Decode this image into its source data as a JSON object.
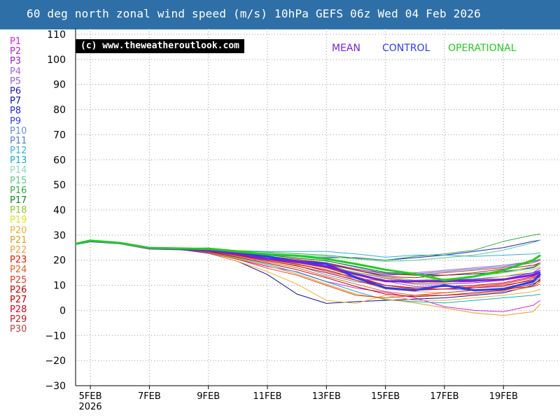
{
  "page": {
    "title": "60 deg north zonal wind speed (m/s) 10hPa GEFS 06z Wed 04 Feb 2026",
    "copyright": "(c) www.theweatheroutlook.com"
  },
  "colors": {
    "title_bar": "#2f6fa8",
    "mean": "#7a1fe0",
    "control": "#2a3df0",
    "operational": "#22cc22"
  },
  "members": [
    {
      "label": "P1",
      "color": "#e020e0"
    },
    {
      "label": "P2",
      "color": "#c020d0"
    },
    {
      "label": "P3",
      "color": "#a020c0"
    },
    {
      "label": "P4",
      "color": "#a860e0"
    },
    {
      "label": "P5",
      "color": "#9060c0"
    },
    {
      "label": "P6",
      "color": "#2020c0"
    },
    {
      "label": "P7",
      "color": "#1010a0"
    },
    {
      "label": "P8",
      "color": "#2020e0"
    },
    {
      "label": "P9",
      "color": "#3040e0"
    },
    {
      "label": "P10",
      "color": "#6090e0"
    },
    {
      "label": "P11",
      "color": "#5080d0"
    },
    {
      "label": "P12",
      "color": "#30b0e8"
    },
    {
      "label": "P13",
      "color": "#10b0d0"
    },
    {
      "label": "P14",
      "color": "#90d8c0"
    },
    {
      "label": "P15",
      "color": "#60c890"
    },
    {
      "label": "P16",
      "color": "#30b040"
    },
    {
      "label": "P17",
      "color": "#108820"
    },
    {
      "label": "P18",
      "color": "#90c830"
    },
    {
      "label": "P19",
      "color": "#e0e020"
    },
    {
      "label": "P20",
      "color": "#f0b030"
    },
    {
      "label": "P21",
      "color": "#e0a020"
    },
    {
      "label": "P22",
      "color": "#f0a040"
    },
    {
      "label": "P23",
      "color": "#e02000"
    },
    {
      "label": "P24",
      "color": "#e06020"
    },
    {
      "label": "P25",
      "color": "#e04020"
    },
    {
      "label": "P26",
      "color": "#d00000"
    },
    {
      "label": "P27",
      "color": "#c00000"
    },
    {
      "label": "P28",
      "color": "#e00020"
    },
    {
      "label": "P29",
      "color": "#c02020"
    },
    {
      "label": "P30",
      "color": "#c04040"
    }
  ],
  "chart_data": {
    "type": "line",
    "title": "60 deg north zonal wind speed (m/s) 10hPa GEFS 06z Wed 04 Feb 2026",
    "xlabel": "",
    "ylabel": "",
    "ylim": [
      -30,
      110
    ],
    "yticks": [
      -30,
      -20,
      -10,
      0,
      10,
      20,
      30,
      40,
      50,
      60,
      70,
      80,
      90,
      100,
      110
    ],
    "xlim": [
      "2026-02-04T12:00",
      "2026-02-20T06:00"
    ],
    "xtick_dates": [
      "2026-02-05",
      "2026-02-07",
      "2026-02-09",
      "2026-02-11",
      "2026-02-13",
      "2026-02-15",
      "2026-02-17",
      "2026-02-19"
    ],
    "xtick_labels": [
      "5FEB",
      "7FEB",
      "9FEB",
      "11FEB",
      "13FEB",
      "15FEB",
      "17FEB",
      "19FEB"
    ],
    "xtick_sublabel": "2026",
    "grid": true,
    "legend": [
      "MEAN",
      "CONTROL",
      "OPERATIONAL"
    ],
    "legend_position": "top-right",
    "x": [
      "2026-02-04T12:00",
      "2026-02-05T00:00",
      "2026-02-06T00:00",
      "2026-02-07T00:00",
      "2026-02-08T00:00",
      "2026-02-09T00:00",
      "2026-02-10T00:00",
      "2026-02-11T00:00",
      "2026-02-12T00:00",
      "2026-02-13T00:00",
      "2026-02-14T00:00",
      "2026-02-15T00:00",
      "2026-02-16T00:00",
      "2026-02-17T00:00",
      "2026-02-18T00:00",
      "2026-02-19T00:00",
      "2026-02-20T00:00",
      "2026-02-20T06:00"
    ],
    "series": [
      {
        "name": "MEAN",
        "values": [
          26.5,
          27.6,
          26.8,
          24.7,
          24.4,
          23.8,
          22.4,
          20.5,
          19.3,
          17.5,
          14.4,
          11.6,
          11.6,
          11.7,
          11.9,
          12.3,
          14.1,
          15.2
        ]
      },
      {
        "name": "CONTROL",
        "values": [
          26.5,
          27.7,
          26.8,
          24.8,
          24.5,
          24.1,
          22.5,
          21.5,
          19.5,
          18.5,
          13.0,
          9.0,
          8.0,
          10.0,
          8.0,
          8.5,
          11.5,
          14.5
        ]
      },
      {
        "name": "OPERATIONAL",
        "values": [
          26.5,
          27.8,
          26.9,
          24.9,
          24.7,
          24.5,
          23.5,
          22.3,
          21.8,
          20.5,
          18.5,
          16.2,
          14.5,
          12.0,
          13.5,
          16.0,
          20.0,
          22.0
        ]
      },
      {
        "name": "P1",
        "values": [
          26.5,
          27.5,
          26.7,
          24.6,
          24.4,
          23.2,
          20.3,
          17.5,
          15.4,
          11.5,
          8.9,
          7.2,
          5.0,
          1.5,
          0.0,
          -0.5,
          2.0,
          4.0
        ]
      },
      {
        "name": "P2",
        "values": [
          26.5,
          27.6,
          26.8,
          24.7,
          24.5,
          24.0,
          22.3,
          20.7,
          19.5,
          17.6,
          15.1,
          12.8,
          11.5,
          11.2,
          11.5,
          12.5,
          15.0,
          17.0
        ]
      },
      {
        "name": "P3",
        "values": [
          26.5,
          27.6,
          26.8,
          24.8,
          24.5,
          24.1,
          22.7,
          20.8,
          19.6,
          17.0,
          14.5,
          12.0,
          10.5,
          10.5,
          11.0,
          12.0,
          14.5,
          16.0
        ]
      },
      {
        "name": "P4",
        "values": [
          26.5,
          27.6,
          26.8,
          24.8,
          24.6,
          24.2,
          22.8,
          21.3,
          20.0,
          18.8,
          16.2,
          15.0,
          15.0,
          16.0,
          17.0,
          18.0,
          19.5,
          20.0
        ]
      },
      {
        "name": "P5",
        "values": [
          26.5,
          27.5,
          26.8,
          24.7,
          24.5,
          23.8,
          22.2,
          20.2,
          18.7,
          15.5,
          12.7,
          11.7,
          9.5,
          10.0,
          9.0,
          9.5,
          12.5,
          15.0
        ]
      },
      {
        "name": "P6",
        "values": [
          26.5,
          27.6,
          26.9,
          24.8,
          24.7,
          24.8,
          23.5,
          22.5,
          21.5,
          21.0,
          21.0,
          20.0,
          21.0,
          22.0,
          23.5,
          25.0,
          27.5,
          28.0
        ]
      },
      {
        "name": "P7",
        "values": [
          26.5,
          27.5,
          26.7,
          24.6,
          24.3,
          22.8,
          19.5,
          14.3,
          6.5,
          2.8,
          3.5,
          4.0,
          4.5,
          5.0,
          6.0,
          7.0,
          10.0,
          12.5
        ]
      },
      {
        "name": "P8",
        "values": [
          26.5,
          27.7,
          26.8,
          24.8,
          24.5,
          24.3,
          22.4,
          21.2,
          19.8,
          19.0,
          16.0,
          14.0,
          14.5,
          14.0,
          14.5,
          15.5,
          17.0,
          18.5
        ]
      },
      {
        "name": "P9",
        "values": [
          26.5,
          27.6,
          26.8,
          24.7,
          24.5,
          24.0,
          22.2,
          20.7,
          19.6,
          18.5,
          14.8,
          11.9,
          11.0,
          12.0,
          12.5,
          13.5,
          15.0,
          16.0
        ]
      },
      {
        "name": "P10",
        "values": [
          26.5,
          27.5,
          26.8,
          24.7,
          24.3,
          23.5,
          21.7,
          19.7,
          17.9,
          14.2,
          11.4,
          10.0,
          8.5,
          8.5,
          8.0,
          8.5,
          11.0,
          13.0
        ]
      },
      {
        "name": "P11",
        "values": [
          26.5,
          27.6,
          26.9,
          24.8,
          24.6,
          24.4,
          23.2,
          22.2,
          20.8,
          19.8,
          17.2,
          14.8,
          14.5,
          15.5,
          16.5,
          17.5,
          19.5,
          20.5
        ]
      },
      {
        "name": "P12",
        "values": [
          26.5,
          27.6,
          26.8,
          24.7,
          24.6,
          24.6,
          23.8,
          23.5,
          23.5,
          23.5,
          22.5,
          21.2,
          22.0,
          22.0,
          21.5,
          22.0,
          22.5,
          23.0
        ]
      },
      {
        "name": "P13",
        "values": [
          26.5,
          27.5,
          26.7,
          24.6,
          24.3,
          23.3,
          20.9,
          18.3,
          15.2,
          11.4,
          7.5,
          4.2,
          3.5,
          3.0,
          4.0,
          5.0,
          6.0,
          6.5
        ]
      },
      {
        "name": "P14",
        "values": [
          26.5,
          27.6,
          26.8,
          24.7,
          24.5,
          24.0,
          22.2,
          20.5,
          19.4,
          17.8,
          15.3,
          13.0,
          12.0,
          12.5,
          13.5,
          15.0,
          16.5,
          17.5
        ]
      },
      {
        "name": "P15",
        "values": [
          26.5,
          27.6,
          26.9,
          24.8,
          24.6,
          24.6,
          23.3,
          22.8,
          22.0,
          21.5,
          20.5,
          19.5,
          20.0,
          21.0,
          22.0,
          24.0,
          27.0,
          28.0
        ]
      },
      {
        "name": "P16",
        "values": [
          26.5,
          27.7,
          26.9,
          24.9,
          24.7,
          24.9,
          23.8,
          23.2,
          22.6,
          22.0,
          20.8,
          20.0,
          21.5,
          22.5,
          24.0,
          27.5,
          30.0,
          30.5
        ]
      },
      {
        "name": "P17",
        "values": [
          26.5,
          27.6,
          26.8,
          24.8,
          24.6,
          24.4,
          23.0,
          22.0,
          20.9,
          19.7,
          17.5,
          15.2,
          14.0,
          14.0,
          14.5,
          15.0,
          17.5,
          19.0
        ]
      },
      {
        "name": "P18",
        "values": [
          26.5,
          27.6,
          26.8,
          24.7,
          24.5,
          24.1,
          22.5,
          21.1,
          19.5,
          17.8,
          15.0,
          13.5,
          12.0,
          12.5,
          13.5,
          15.0,
          17.5,
          18.5
        ]
      },
      {
        "name": "P19",
        "values": [
          26.5,
          27.6,
          26.8,
          24.7,
          24.4,
          23.7,
          21.8,
          20.0,
          18.2,
          16.1,
          14.0,
          12.5,
          11.0,
          11.0,
          12.0,
          13.5,
          16.0,
          17.5
        ]
      },
      {
        "name": "P20",
        "values": [
          26.5,
          27.5,
          26.7,
          24.6,
          24.4,
          23.0,
          19.5,
          15.5,
          10.5,
          4.0,
          2.8,
          6.0,
          4.0,
          4.0,
          5.0,
          6.0,
          7.5,
          8.5
        ]
      },
      {
        "name": "P21",
        "values": [
          26.5,
          27.5,
          26.7,
          24.6,
          24.3,
          23.2,
          20.6,
          17.8,
          14.5,
          10.5,
          6.5,
          4.5,
          3.0,
          1.0,
          -1.0,
          -2.0,
          -0.5,
          2.5
        ]
      },
      {
        "name": "P22",
        "values": [
          26.5,
          27.6,
          26.8,
          24.7,
          24.5,
          23.9,
          22.0,
          20.2,
          18.6,
          16.4,
          12.0,
          8.5,
          7.5,
          7.0,
          8.0,
          9.0,
          11.5,
          13.0
        ]
      },
      {
        "name": "P23",
        "values": [
          26.5,
          27.6,
          26.8,
          24.7,
          24.5,
          24.0,
          22.3,
          20.5,
          19.0,
          17.0,
          13.5,
          10.0,
          8.5,
          8.5,
          9.5,
          10.5,
          13.0,
          14.5
        ]
      },
      {
        "name": "P24",
        "values": [
          26.5,
          27.6,
          26.8,
          24.7,
          24.4,
          23.6,
          21.6,
          19.3,
          17.0,
          13.5,
          10.5,
          7.5,
          6.0,
          6.0,
          6.5,
          7.5,
          9.5,
          11.5
        ]
      },
      {
        "name": "P25",
        "values": [
          26.5,
          27.5,
          26.7,
          24.6,
          24.3,
          23.0,
          20.3,
          16.8,
          14.0,
          10.0,
          6.0,
          5.0,
          6.0,
          7.0,
          8.0,
          8.5,
          9.5,
          10.5
        ]
      },
      {
        "name": "P26",
        "values": [
          26.5,
          27.6,
          26.8,
          24.7,
          24.5,
          23.8,
          21.9,
          19.8,
          17.7,
          15.0,
          12.0,
          9.0,
          8.0,
          8.5,
          9.0,
          10.0,
          12.0,
          13.5
        ]
      },
      {
        "name": "P27",
        "values": [
          26.5,
          27.6,
          26.8,
          24.7,
          24.4,
          23.4,
          21.2,
          18.8,
          16.2,
          13.0,
          9.5,
          6.5,
          5.5,
          6.0,
          7.0,
          8.0,
          10.5,
          12.0
        ]
      },
      {
        "name": "P28",
        "values": [
          26.5,
          27.6,
          26.8,
          24.7,
          24.5,
          23.9,
          22.1,
          20.3,
          18.4,
          16.0,
          13.0,
          10.0,
          9.0,
          9.5,
          10.0,
          11.0,
          13.5,
          15.0
        ]
      },
      {
        "name": "P29",
        "values": [
          26.5,
          27.6,
          26.8,
          24.7,
          24.5,
          24.2,
          22.7,
          21.3,
          20.0,
          18.5,
          16.0,
          13.5,
          13.0,
          14.0,
          15.0,
          16.5,
          18.0,
          19.0
        ]
      },
      {
        "name": "P30",
        "values": [
          26.5,
          27.6,
          26.8,
          24.8,
          24.6,
          24.3,
          22.9,
          21.5,
          20.4,
          19.0,
          16.5,
          14.5,
          14.0,
          15.0,
          16.0,
          17.0,
          19.0,
          20.0
        ]
      }
    ]
  }
}
